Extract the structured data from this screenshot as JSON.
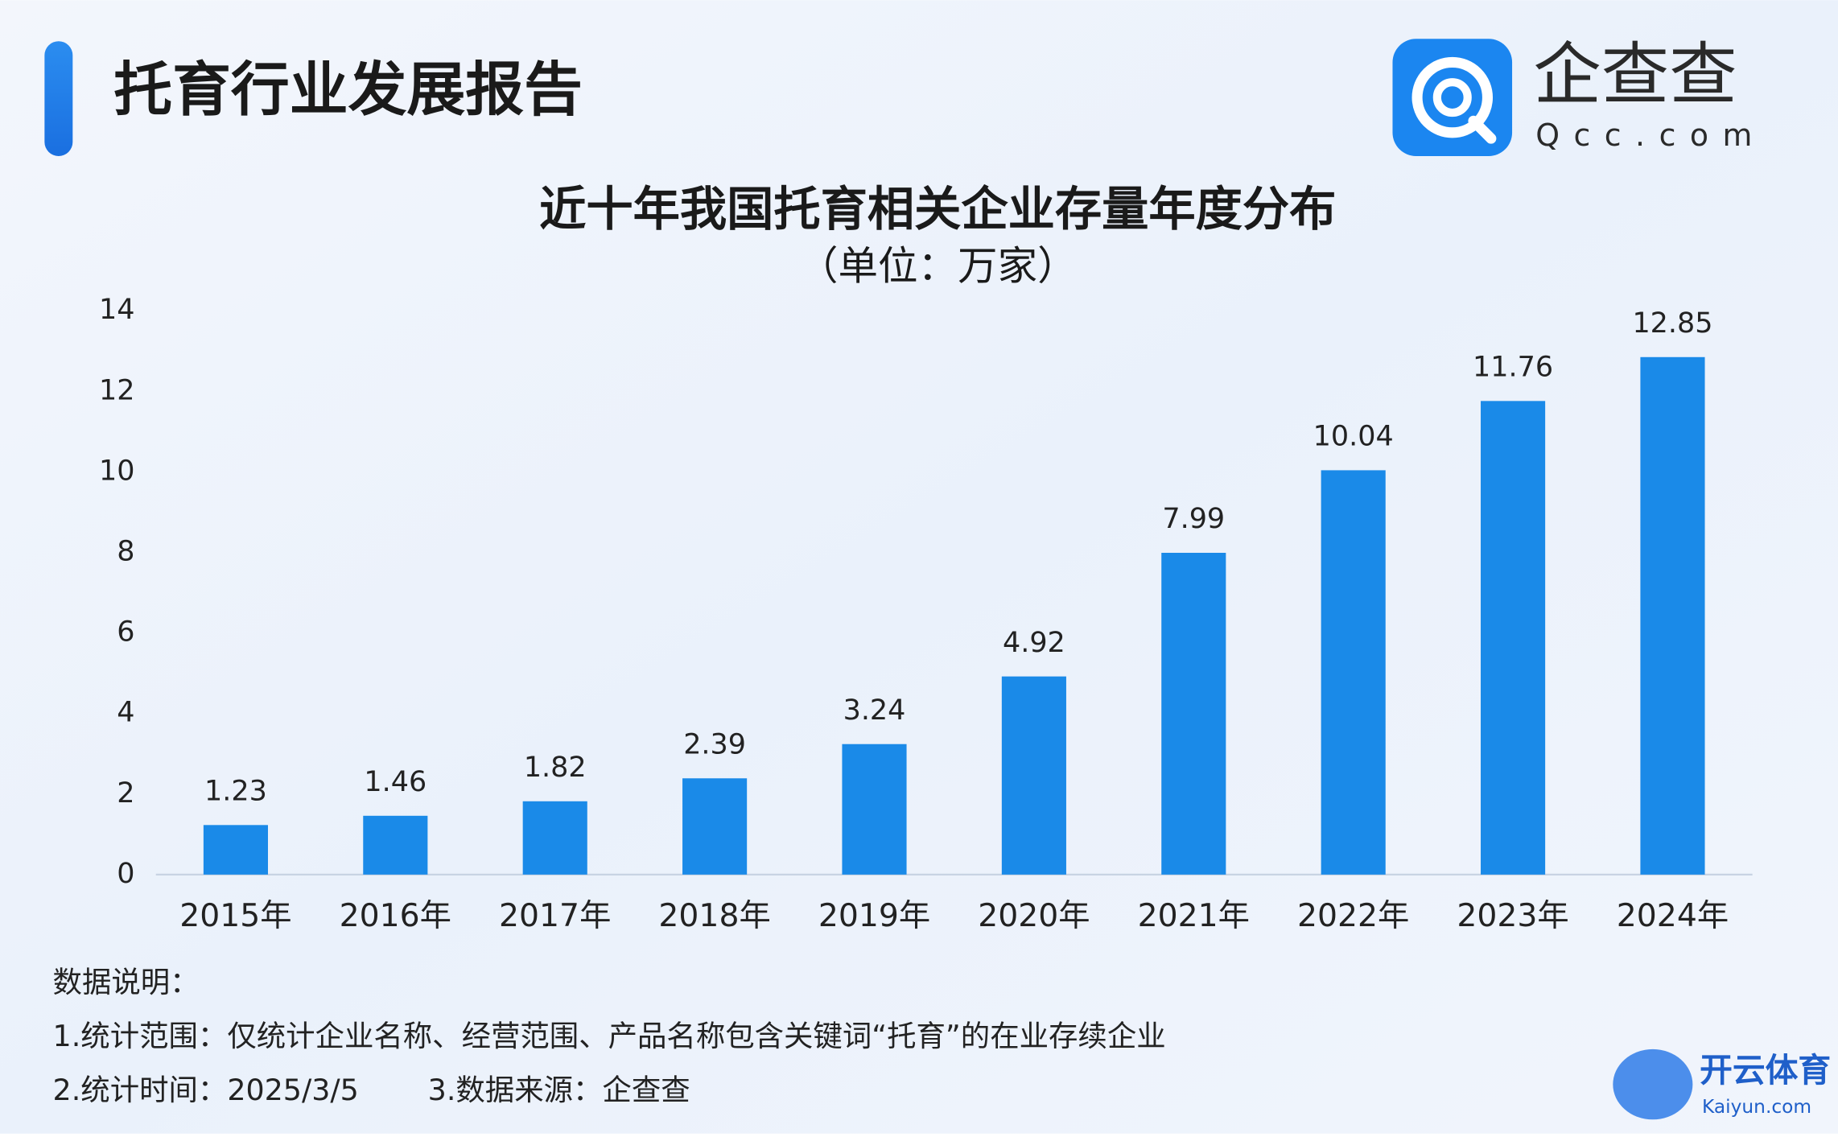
{
  "header": {
    "title": "托育行业发展报告",
    "logo_name": "企查查",
    "logo_domain": "Qcc.com"
  },
  "chart_data": {
    "type": "bar",
    "title": "近十年我国托育相关企业存量年度分布",
    "subtitle": "（单位：万家）",
    "categories": [
      "2015年",
      "2016年",
      "2017年",
      "2018年",
      "2019年",
      "2020年",
      "2021年",
      "2022年",
      "2023年",
      "2024年"
    ],
    "values": [
      1.23,
      1.46,
      1.82,
      2.39,
      3.24,
      4.92,
      7.99,
      10.04,
      11.76,
      12.85
    ],
    "color": "#1a8ae8",
    "ylim": [
      0,
      14
    ],
    "yticks": [
      0,
      2,
      4,
      6,
      8,
      10,
      12,
      14
    ],
    "grid": false
  },
  "notes": {
    "heading": "数据说明：",
    "line1": "1.统计范围：仅统计企业名称、经营范围、产品名称包含关键词“托育”的在业存续企业",
    "time": "2.统计时间：2025/3/5",
    "source": "3.数据来源：企查查"
  },
  "watermark": {
    "name": "开云体育",
    "domain": "Kaiyun.com"
  }
}
